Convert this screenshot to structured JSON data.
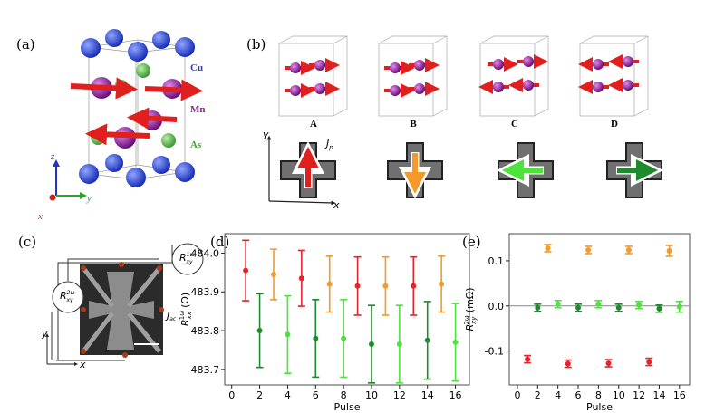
{
  "panels": {
    "a": {
      "label": "(a)",
      "legend": [
        "Cu",
        "Mn",
        "As"
      ],
      "axes": [
        "z",
        "y",
        "x"
      ]
    },
    "b": {
      "label": "(b)",
      "states": [
        "A",
        "B",
        "C",
        "D"
      ],
      "current": "J",
      "current_sub": "p",
      "axes": [
        "y",
        "x"
      ]
    },
    "c": {
      "label": "(c)",
      "meters": [
        {
          "symbol": "R",
          "sub": "xy",
          "sup": "1ω"
        },
        {
          "symbol": "R",
          "sub": "xy",
          "sup": "2ω"
        }
      ],
      "current": "J",
      "current_sub": "ac",
      "axes": [
        "y",
        "x"
      ]
    }
  },
  "chart_data": [
    {
      "type": "errorbar",
      "label": "(d)",
      "x_label": "Pulse",
      "y_label": {
        "symbol": "R",
        "sub": "xx",
        "sup": "1ω",
        "unit": "(Ω)"
      },
      "xlim": [
        -0.5,
        17
      ],
      "xticks": [
        0,
        2,
        4,
        6,
        8,
        10,
        12,
        14,
        16
      ],
      "ylim": [
        483.66,
        484.05
      ],
      "yticks": [
        {
          "value": 483.7,
          "label": "483.7"
        },
        {
          "value": 483.8,
          "label": "483.8"
        },
        {
          "value": 483.9,
          "label": "483.9"
        },
        {
          "value": 484,
          "label": "484.0"
        }
      ],
      "series": [
        {
          "color": "#e8242b",
          "x": [
            1,
            5,
            9,
            13
          ],
          "values": [
            483.955,
            483.935,
            483.915,
            483.915
          ],
          "errors": [
            0.078,
            0.072,
            0.075,
            0.075
          ]
        },
        {
          "color": "#f39a2a",
          "x": [
            3,
            7,
            11,
            15
          ],
          "values": [
            483.945,
            483.92,
            483.915,
            483.92
          ],
          "errors": [
            0.065,
            0.072,
            0.075,
            0.072
          ]
        },
        {
          "color": "#1f8a2c",
          "x": [
            2,
            6,
            10,
            14
          ],
          "values": [
            483.8,
            483.78,
            483.765,
            483.775
          ],
          "errors": [
            0.095,
            0.1,
            0.1,
            0.1
          ]
        },
        {
          "color": "#4ee23c",
          "x": [
            4,
            8,
            12,
            16
          ],
          "values": [
            483.79,
            483.78,
            483.765,
            483.77
          ],
          "errors": [
            0.1,
            0.1,
            0.1,
            0.1
          ]
        }
      ]
    },
    {
      "type": "errorbar",
      "label": "(e)",
      "x_label": "Pulse",
      "y_label": {
        "symbol": "R",
        "sub": "xy",
        "sup": "2ω",
        "unit": "(mΩ)"
      },
      "xlim": [
        -0.8,
        17
      ],
      "xticks": [
        0,
        2,
        4,
        6,
        8,
        10,
        12,
        14,
        16
      ],
      "ylim": [
        -0.175,
        0.16
      ],
      "yticks": [
        -0.1,
        {
          "value": 0,
          "label": "0.0"
        },
        0.1
      ],
      "zero_line": true,
      "series": [
        {
          "color": "#e8242b",
          "x": [
            1,
            5,
            9,
            13
          ],
          "values": [
            -0.118,
            -0.128,
            -0.127,
            -0.124
          ],
          "errors": [
            0.008,
            0.008,
            0.008,
            0.008
          ]
        },
        {
          "color": "#f39a2a",
          "x": [
            3,
            7,
            11,
            15
          ],
          "values": [
            0.128,
            0.124,
            0.124,
            0.122
          ],
          "errors": [
            0.008,
            0.008,
            0.008,
            0.012
          ]
        },
        {
          "color": "#1f8a2c",
          "x": [
            2,
            6,
            10,
            14
          ],
          "values": [
            -0.004,
            -0.004,
            -0.004,
            -0.006
          ],
          "errors": [
            0.008,
            0.008,
            0.008,
            0.008
          ]
        },
        {
          "color": "#4ee23c",
          "x": [
            4,
            8,
            12,
            16
          ],
          "values": [
            0.004,
            0.004,
            0.002,
            -0.002
          ],
          "errors": [
            0.008,
            0.008,
            0.008,
            0.012
          ]
        }
      ]
    }
  ]
}
